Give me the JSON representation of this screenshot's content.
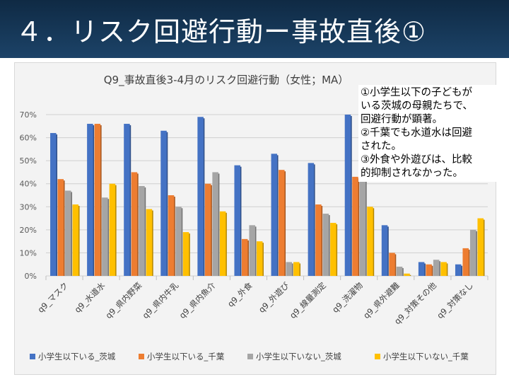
{
  "slide": {
    "title": "４．リスク回避行動ー事故直後①"
  },
  "annotation": {
    "lines": [
      "①小学生以下の子どもが",
      "いる茨城の母親たちで、",
      "回避行動が顕著。",
      "②千葉でも水道水は回避",
      "された。",
      "③外食や外遊びは、比較",
      "的抑制されなかった。"
    ]
  },
  "chart_data": {
    "type": "bar",
    "title": "Q9_事故直後3-4月のリスク回避行動（女性；MA）",
    "categories": [
      "q9_マスク",
      "q9_水道水",
      "q9_県内野菜",
      "q9_県内牛乳",
      "q9_県内魚介",
      "q9_外食",
      "q9_外遊び",
      "q9_線量測定",
      "q9_洗濯物",
      "q9_県外避難",
      "q9_対策その他",
      "q9_対策なし"
    ],
    "series": [
      {
        "name": "小学生以下いる_茨城",
        "color": "#4472c4",
        "values": [
          62,
          66,
          66,
          63,
          69,
          48,
          53,
          49,
          70,
          22,
          6,
          5
        ]
      },
      {
        "name": "小学生以下いる_千葉",
        "color": "#ed7d31",
        "values": [
          42,
          66,
          45,
          35,
          40,
          16,
          46,
          31,
          43,
          10,
          5,
          12
        ]
      },
      {
        "name": "小学生以下いない_茨城",
        "color": "#a5a5a5",
        "values": [
          37,
          34,
          39,
          30,
          45,
          22,
          6,
          27,
          42,
          4,
          7,
          20
        ]
      },
      {
        "name": "小学生以下いない_千葉",
        "color": "#ffc000",
        "values": [
          31,
          40,
          29,
          19,
          28,
          15,
          6,
          23,
          30,
          1,
          6,
          25
        ]
      }
    ],
    "ylim": [
      0,
      70
    ],
    "yticks": [
      "0%",
      "10%",
      "20%",
      "30%",
      "40%",
      "50%",
      "60%",
      "70%"
    ],
    "grid": true,
    "legend": "bottom"
  }
}
